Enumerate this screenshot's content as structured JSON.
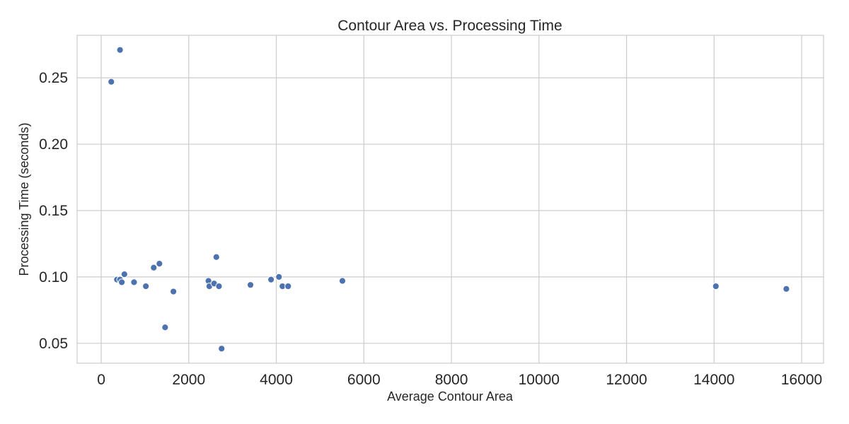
{
  "chart_data": {
    "type": "scatter",
    "title": "Contour Area vs. Processing Time",
    "xlabel": "Average Contour Area",
    "ylabel": "Processing Time (seconds)",
    "xlim": [
      -550,
      16500
    ],
    "ylim": [
      0.035,
      0.282
    ],
    "xticks": [
      0,
      2000,
      4000,
      6000,
      8000,
      10000,
      12000,
      14000,
      16000
    ],
    "yticks": [
      0.05,
      0.1,
      0.15,
      0.2,
      0.25
    ],
    "xtick_labels": [
      "0",
      "2000",
      "4000",
      "6000",
      "8000",
      "10000",
      "12000",
      "14000",
      "16000"
    ],
    "ytick_labels": [
      "0.05",
      "0.10",
      "0.15",
      "0.20",
      "0.25"
    ],
    "grid": true,
    "point_color": "#4c72b0",
    "points": [
      {
        "x": 230,
        "y": 0.247
      },
      {
        "x": 430,
        "y": 0.271
      },
      {
        "x": 360,
        "y": 0.098
      },
      {
        "x": 430,
        "y": 0.098
      },
      {
        "x": 470,
        "y": 0.096
      },
      {
        "x": 530,
        "y": 0.102
      },
      {
        "x": 750,
        "y": 0.096
      },
      {
        "x": 1020,
        "y": 0.093
      },
      {
        "x": 1200,
        "y": 0.107
      },
      {
        "x": 1330,
        "y": 0.11
      },
      {
        "x": 1460,
        "y": 0.062
      },
      {
        "x": 1650,
        "y": 0.089
      },
      {
        "x": 2450,
        "y": 0.097
      },
      {
        "x": 2470,
        "y": 0.093
      },
      {
        "x": 2580,
        "y": 0.095
      },
      {
        "x": 2630,
        "y": 0.115
      },
      {
        "x": 2690,
        "y": 0.093
      },
      {
        "x": 2750,
        "y": 0.046
      },
      {
        "x": 3410,
        "y": 0.094
      },
      {
        "x": 3880,
        "y": 0.098
      },
      {
        "x": 4060,
        "y": 0.1
      },
      {
        "x": 4140,
        "y": 0.093
      },
      {
        "x": 4270,
        "y": 0.093
      },
      {
        "x": 5510,
        "y": 0.097
      },
      {
        "x": 14040,
        "y": 0.093
      },
      {
        "x": 15650,
        "y": 0.091
      }
    ]
  }
}
